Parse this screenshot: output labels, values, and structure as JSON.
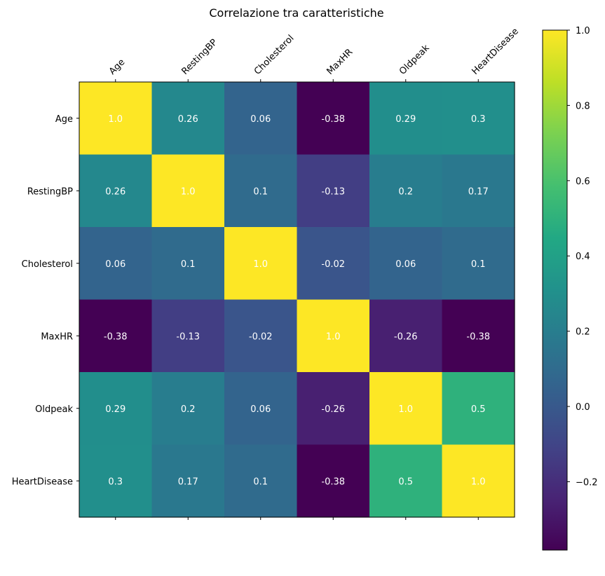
{
  "chart_data": {
    "type": "heatmap",
    "title": "Correlazione tra caratteristiche",
    "x_labels": [
      "Age",
      "RestingBP",
      "Cholesterol",
      "MaxHR",
      "Oldpeak",
      "HeartDisease"
    ],
    "y_labels": [
      "Age",
      "RestingBP",
      "Cholesterol",
      "MaxHR",
      "Oldpeak",
      "HeartDisease"
    ],
    "values": [
      [
        1.0,
        0.26,
        0.06,
        -0.38,
        0.29,
        0.3
      ],
      [
        0.26,
        1.0,
        0.1,
        -0.13,
        0.2,
        0.17
      ],
      [
        0.06,
        0.1,
        1.0,
        -0.02,
        0.06,
        0.1
      ],
      [
        -0.38,
        -0.13,
        -0.02,
        1.0,
        -0.26,
        -0.38
      ],
      [
        0.29,
        0.2,
        0.06,
        -0.26,
        1.0,
        0.5
      ],
      [
        0.3,
        0.17,
        0.1,
        -0.38,
        0.5,
        1.0
      ]
    ],
    "cell_labels": [
      [
        "1.0",
        "0.26",
        "0.06",
        "-0.38",
        "0.29",
        "0.3"
      ],
      [
        "0.26",
        "1.0",
        "0.1",
        "-0.13",
        "0.2",
        "0.17"
      ],
      [
        "0.06",
        "0.1",
        "1.0",
        "-0.02",
        "0.06",
        "0.1"
      ],
      [
        "-0.38",
        "-0.13",
        "-0.02",
        "1.0",
        "-0.26",
        "-0.38"
      ],
      [
        "0.29",
        "0.2",
        "0.06",
        "-0.26",
        "1.0",
        "0.5"
      ],
      [
        "0.3",
        "0.17",
        "0.1",
        "-0.38",
        "0.5",
        "1.0"
      ]
    ],
    "colormap": "viridis",
    "vmin": -0.3816,
    "vmax": 1.0,
    "colorbar": {
      "ticks": [
        1.0,
        0.8,
        0.6,
        0.4,
        0.2,
        0.0,
        -0.2
      ],
      "tick_labels": [
        "1.0",
        "0.8",
        "0.6",
        "0.4",
        "0.2",
        "0.0",
        "−0.2"
      ]
    },
    "x_tick_position": "top",
    "x_label_rotation": 45,
    "grid": false
  }
}
